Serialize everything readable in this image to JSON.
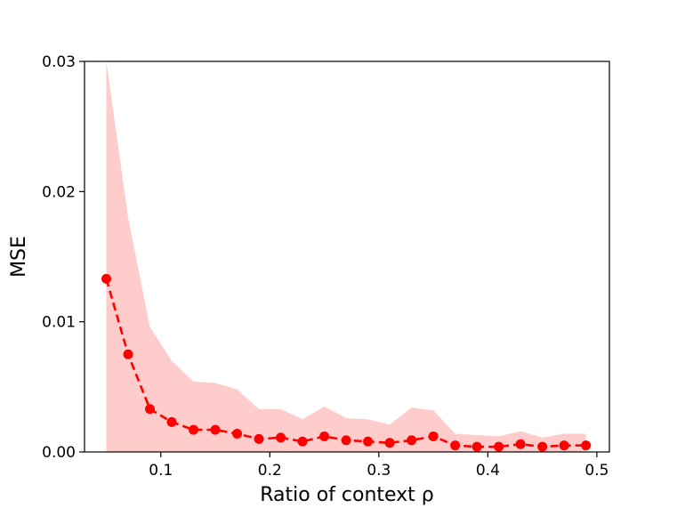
{
  "chart_data": {
    "type": "line",
    "title": "",
    "xlabel": "Ratio of context ρ",
    "ylabel": "MSE",
    "xlim": [
      0.03,
      0.5115
    ],
    "ylim": [
      0.0,
      0.03
    ],
    "xticks": [
      0.1,
      0.2,
      0.3,
      0.4,
      0.5
    ],
    "xtick_labels": [
      "0.1",
      "0.2",
      "0.3",
      "0.4",
      "0.5"
    ],
    "yticks": [
      0.0,
      0.01,
      0.02,
      0.03
    ],
    "ytick_labels": [
      "0.00",
      "0.01",
      "0.02",
      "0.03"
    ],
    "grid": false,
    "colors": {
      "line": "#ff0000",
      "band": "#ffcccc"
    },
    "x": [
      0.05,
      0.07,
      0.09,
      0.11,
      0.13,
      0.15,
      0.17,
      0.19,
      0.21,
      0.23,
      0.25,
      0.27,
      0.29,
      0.31,
      0.33,
      0.35,
      0.37,
      0.39,
      0.41,
      0.43,
      0.45,
      0.47,
      0.49
    ],
    "series": [
      {
        "values": [
          0.0133,
          0.0075,
          0.0033,
          0.0023,
          0.0017,
          0.0017,
          0.0014,
          0.001,
          0.0011,
          0.0008,
          0.0012,
          0.0009,
          0.0008,
          0.0007,
          0.0009,
          0.0012,
          0.0005,
          0.0004,
          0.0004,
          0.0006,
          0.0004,
          0.0005,
          0.0005
        ],
        "upper": [
          0.03,
          0.018,
          0.0096,
          0.007,
          0.0054,
          0.0053,
          0.0048,
          0.0033,
          0.0033,
          0.0025,
          0.0035,
          0.0026,
          0.0025,
          0.0021,
          0.0034,
          0.0032,
          0.0014,
          0.0013,
          0.0012,
          0.0016,
          0.0011,
          0.0014,
          0.0014
        ],
        "lower": [
          0.0,
          0.0,
          0.0,
          0.0,
          0.0,
          0.0,
          0.0,
          0.0,
          0.0,
          0.0,
          0.0,
          0.0,
          0.0,
          0.0,
          0.0,
          0.0,
          0.0,
          0.0,
          0.0,
          0.0,
          0.0,
          0.0,
          0.0
        ]
      }
    ]
  }
}
